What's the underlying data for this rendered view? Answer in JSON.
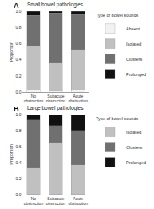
{
  "chart_data": [
    {
      "type": "bar",
      "title": "Small bowel pathologies",
      "categories": [
        "No obstruction",
        "Subacute obstruction",
        "Acute obstruction"
      ],
      "series": [
        {
          "name": "Absent",
          "color": "#f2f2f2",
          "values": [
            0.03,
            0.02,
            0.03
          ]
        },
        {
          "name": "Isolated",
          "color": "#c0c0c0",
          "values": [
            0.54,
            0.34,
            0.5
          ]
        },
        {
          "name": "Clusters",
          "color": "#707070",
          "values": [
            0.38,
            0.62,
            0.43
          ]
        },
        {
          "name": "Prolonged",
          "color": "#111111",
          "values": [
            0.05,
            0.02,
            0.04
          ]
        }
      ],
      "ylabel": "Proportion",
      "ylim": [
        0.0,
        1.0
      ],
      "yticks": [
        {
          "value": 0.0,
          "label": "0.0"
        },
        0.2,
        0.4,
        0.6,
        0.8,
        {
          "value": 1.0,
          "label": "1.0"
        }
      ],
      "stacked": true,
      "grid": false,
      "legend": "right",
      "legend_title": "Type of bowel sounds",
      "annotations": [
        "A"
      ]
    },
    {
      "type": "bar",
      "title": "Large bowel pathologies",
      "categories": [
        "No obstruction",
        "Subacute obstruction",
        "Acute obstruction"
      ],
      "series": [
        {
          "name": "Isolated",
          "color": "#c0c0c0",
          "values": [
            0.33,
            0.65,
            0.37
          ]
        },
        {
          "name": "Clusters",
          "color": "#707070",
          "values": [
            0.6,
            0.21,
            0.43
          ]
        },
        {
          "name": "Prolonged",
          "color": "#111111",
          "values": [
            0.07,
            0.14,
            0.2
          ]
        }
      ],
      "ylabel": "Proportion",
      "ylim": [
        0.0,
        1.0
      ],
      "yticks": [
        {
          "value": 0.0,
          "label": "0.0"
        },
        0.2,
        0.4,
        0.6,
        0.8,
        {
          "value": 1.0,
          "label": "1.0"
        }
      ],
      "stacked": true,
      "grid": false,
      "legend": "right",
      "legend_title": "Type of bowel sounds",
      "annotations": [
        "B"
      ]
    }
  ]
}
